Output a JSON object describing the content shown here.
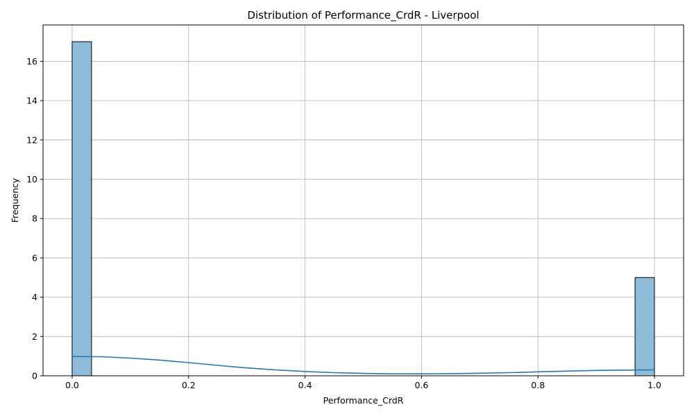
{
  "chart_data": {
    "type": "bar",
    "title": "Distribution of Performance_CrdR - Liverpool",
    "xlabel": "Performance_CrdR",
    "ylabel": "Frequency",
    "xlim": [
      -0.05,
      1.05
    ],
    "ylim": [
      0,
      17.85
    ],
    "x_ticks": [
      0.0,
      0.2,
      0.4,
      0.6,
      0.8,
      1.0
    ],
    "x_tick_labels": [
      "0.0",
      "0.2",
      "0.4",
      "0.6",
      "0.8",
      "1.0"
    ],
    "y_ticks": [
      0,
      2,
      4,
      6,
      8,
      10,
      12,
      14,
      16
    ],
    "y_tick_labels": [
      "0",
      "2",
      "4",
      "6",
      "8",
      "10",
      "12",
      "14",
      "16"
    ],
    "grid": true,
    "bins": [
      {
        "start": 0.0,
        "end": 0.0333,
        "count": 17
      },
      {
        "start": 0.9667,
        "end": 1.0,
        "count": 5
      }
    ],
    "kde": {
      "x": [
        0.0,
        0.05,
        0.1,
        0.15,
        0.2,
        0.25,
        0.3,
        0.35,
        0.4,
        0.45,
        0.5,
        0.55,
        0.6,
        0.65,
        0.7,
        0.75,
        0.8,
        0.85,
        0.9,
        0.95,
        1.0
      ],
      "y": [
        0.98,
        0.97,
        0.9,
        0.8,
        0.67,
        0.53,
        0.4,
        0.3,
        0.22,
        0.16,
        0.12,
        0.1,
        0.1,
        0.11,
        0.13,
        0.16,
        0.2,
        0.24,
        0.27,
        0.29,
        0.3
      ]
    },
    "colors": {
      "bar_fill": "#8fbbdb",
      "bar_edge": "#000000",
      "kde_line": "#1f77b4",
      "grid": "#b0b0b0"
    }
  }
}
